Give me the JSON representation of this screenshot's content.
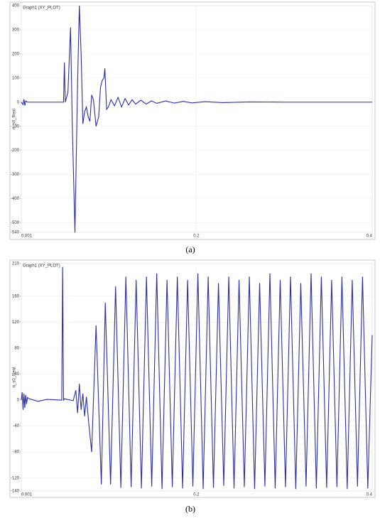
{
  "chart_data": [
    {
      "type": "line",
      "title": "Graph1 (XY_PLOT)",
      "y_label": "n_s0_Real",
      "caption": "(a)",
      "color": "#2b2fa0",
      "grid": true,
      "xlim": [
        0.001,
        0.4
      ],
      "xticks": [
        0.001,
        0.2,
        0.4
      ],
      "ylim": [
        -540,
        400
      ],
      "yticks": [
        400,
        300,
        200,
        100,
        0,
        -100,
        -200,
        -300,
        -400,
        -500,
        -540
      ],
      "x": [
        0.001,
        0.003,
        0.004,
        0.005,
        0.006,
        0.008,
        0.048,
        0.049,
        0.05,
        0.051,
        0.054,
        0.057,
        0.059,
        0.062,
        0.065,
        0.067,
        0.069,
        0.071,
        0.073,
        0.075,
        0.077,
        0.079,
        0.081,
        0.083,
        0.086,
        0.089,
        0.091,
        0.093,
        0.095,
        0.096,
        0.098,
        0.1,
        0.103,
        0.107,
        0.111,
        0.115,
        0.119,
        0.123,
        0.127,
        0.131,
        0.137,
        0.143,
        0.149,
        0.155,
        0.165,
        0.175,
        0.185,
        0.195,
        0.21,
        0.23,
        0.26,
        0.3,
        0.35,
        0.4
      ],
      "values": [
        0,
        -10,
        12,
        -14,
        5,
        0,
        0,
        0,
        165,
        0,
        40,
        310,
        -100,
        -540,
        80,
        400,
        200,
        -90,
        -40,
        -20,
        -60,
        -80,
        30,
        10,
        -100,
        -60,
        60,
        90,
        100,
        140,
        -30,
        -20,
        10,
        -15,
        20,
        -20,
        15,
        -12,
        10,
        -8,
        8,
        -8,
        5,
        -5,
        5,
        -4,
        3,
        -3,
        2,
        -2,
        1,
        0,
        0,
        0
      ]
    },
    {
      "type": "line",
      "title": "Graph1 (XY_PLOT)",
      "y_label": "n_s0_Real",
      "caption": "(b)",
      "color": "#2b2fa0",
      "grid": true,
      "xlim": [
        0.001,
        0.4
      ],
      "xticks": [
        0.001,
        0.2,
        0.4
      ],
      "ylim": [
        -140,
        210
      ],
      "yticks": [
        210,
        160,
        120,
        80,
        40,
        0,
        -40,
        -80,
        -120,
        -140
      ],
      "x": [
        0.001,
        0.002,
        0.003,
        0.004,
        0.005,
        0.006,
        0.007,
        0.008,
        0.01,
        0.02,
        0.03,
        0.047,
        0.048,
        0.049,
        0.05,
        0.06,
        0.063,
        0.065,
        0.067,
        0.069,
        0.071,
        0.073,
        0.075,
        0.078,
        0.081,
        0.086,
        0.092,
        0.0965,
        0.1025,
        0.1082,
        0.1142,
        0.1199,
        0.1259,
        0.1316,
        0.1376,
        0.1433,
        0.1493,
        0.155,
        0.161,
        0.1667,
        0.1727,
        0.1784,
        0.1844,
        0.1901,
        0.1961,
        0.2018,
        0.2078,
        0.2135,
        0.2195,
        0.2252,
        0.2312,
        0.2369,
        0.2429,
        0.2486,
        0.2546,
        0.2603,
        0.2663,
        0.272,
        0.278,
        0.2837,
        0.2897,
        0.2954,
        0.3014,
        0.3071,
        0.3131,
        0.3188,
        0.3248,
        0.3305,
        0.3365,
        0.3422,
        0.3482,
        0.3539,
        0.3599,
        0.3656,
        0.3716,
        0.3773,
        0.3833,
        0.389,
        0.395,
        0.4
      ],
      "values": [
        0,
        12,
        -15,
        10,
        -12,
        8,
        -6,
        4,
        2,
        -2,
        1,
        0,
        205,
        0,
        2,
        -1,
        15,
        -20,
        25,
        -15,
        10,
        -25,
        5,
        -40,
        -80,
        115,
        -130,
        150,
        -130,
        175,
        -135,
        190,
        -134,
        185,
        -136,
        190,
        -133,
        195,
        -137,
        185,
        -134,
        190,
        -136,
        185,
        -133,
        195,
        -137,
        190,
        -135,
        180,
        -132,
        190,
        -136,
        185,
        -134,
        190,
        -137,
        180,
        -133,
        195,
        -136,
        185,
        -134,
        190,
        -137,
        180,
        -133,
        195,
        -136,
        190,
        -135,
        185,
        -134,
        190,
        -137,
        185,
        -133,
        190,
        -136,
        100
      ]
    }
  ]
}
